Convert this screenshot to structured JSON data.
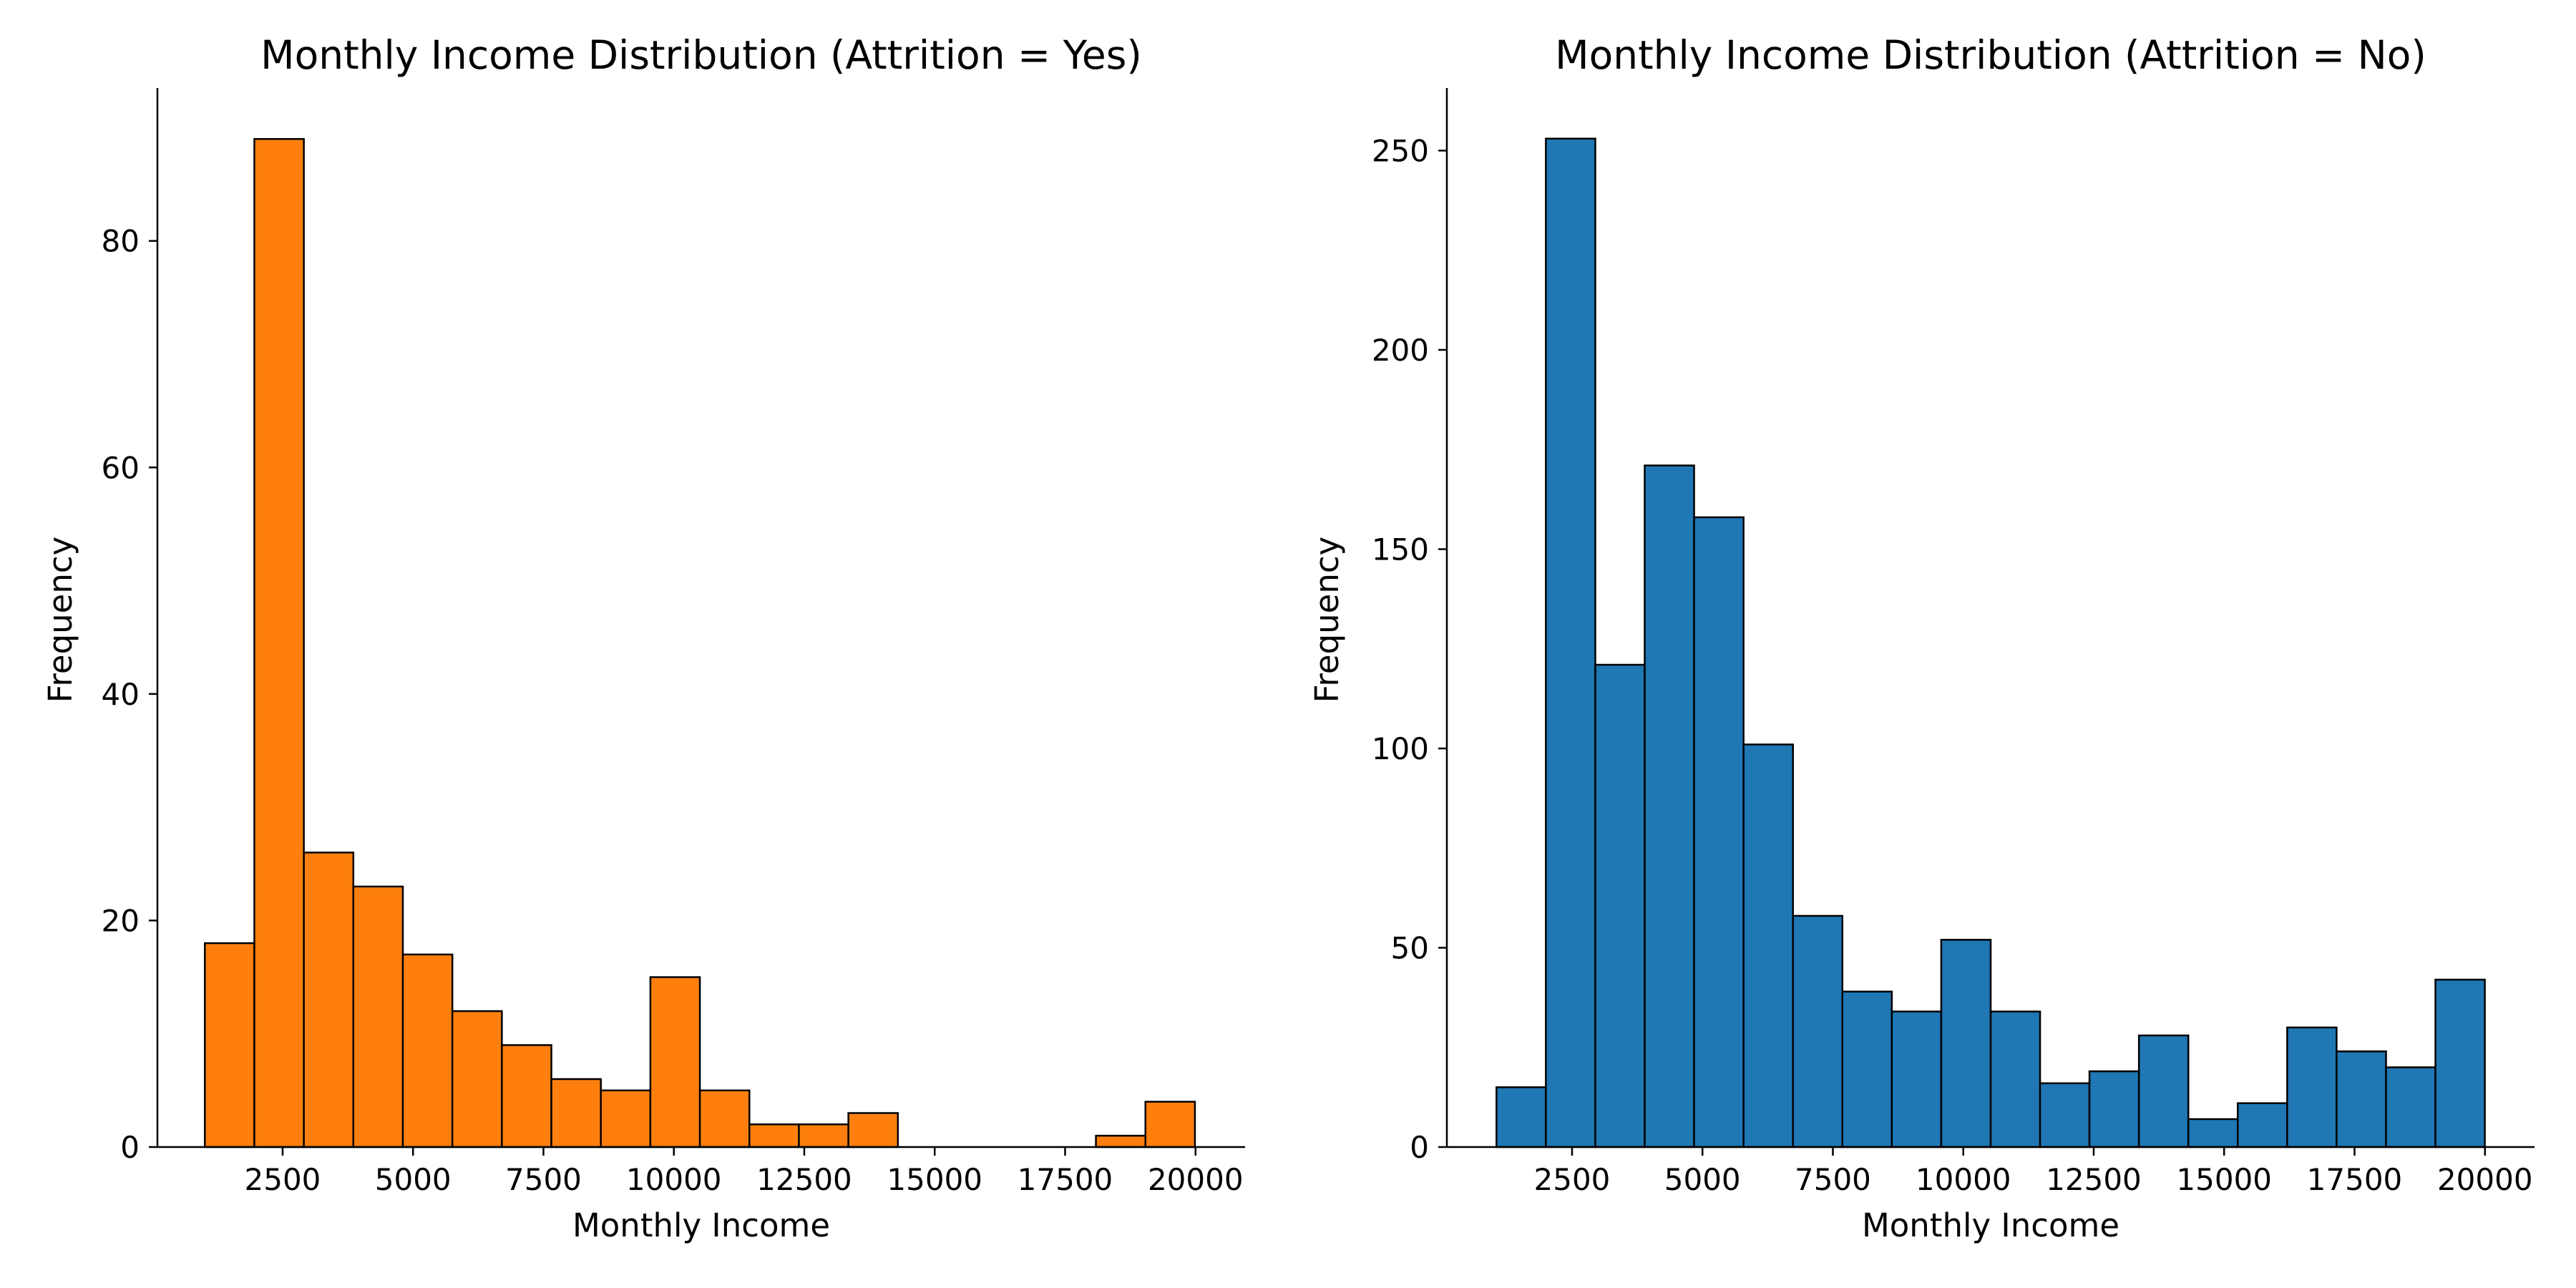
{
  "chart_data": [
    {
      "type": "bar",
      "title": "Monthly Income Distribution (Attrition = Yes)",
      "xlabel": "Monthly Income",
      "ylabel": "Frequency",
      "color": "#ff7f0e",
      "edge_color": "#000000",
      "xlim": [
        100,
        20950
      ],
      "ylim": [
        0,
        93.5
      ],
      "xticks": [
        2500,
        5000,
        7500,
        10000,
        12500,
        15000,
        17500,
        20000
      ],
      "xtick_labels": [
        "2500",
        "5000",
        "7500",
        "10000",
        "12500",
        "15000",
        "17500",
        "20000"
      ],
      "yticks": [
        0,
        20,
        40,
        60,
        80
      ],
      "ytick_labels": [
        "0",
        "20",
        "40",
        "60",
        "80"
      ],
      "bin_edges": [
        1009,
        1958,
        2907,
        3856,
        4805,
        5754,
        6703,
        7652,
        8601,
        9550,
        10499,
        11448,
        12397,
        13346,
        14295,
        15244,
        16193,
        17142,
        18091,
        19040,
        19989
      ],
      "values": [
        18,
        89,
        26,
        23,
        17,
        12,
        9,
        6,
        5,
        15,
        5,
        2,
        2,
        3,
        0,
        0,
        0,
        0,
        1,
        4
      ]
    },
    {
      "type": "bar",
      "title": "Monthly Income Distribution (Attrition = No)",
      "xlabel": "Monthly Income",
      "ylabel": "Frequency",
      "color": "#1f77b4",
      "edge_color": "#000000",
      "xlim": [
        100,
        20950
      ],
      "ylim": [
        0,
        265.7
      ],
      "xticks": [
        2500,
        5000,
        7500,
        10000,
        12500,
        15000,
        17500,
        20000
      ],
      "xtick_labels": [
        "2500",
        "5000",
        "7500",
        "10000",
        "12500",
        "15000",
        "17500",
        "20000"
      ],
      "yticks": [
        0,
        50,
        100,
        150,
        200,
        250
      ],
      "ytick_labels": [
        "0",
        "50",
        "100",
        "150",
        "200",
        "250"
      ],
      "bin_edges": [
        1051,
        1998,
        2946,
        3893,
        4840,
        5788,
        6735,
        7682,
        8630,
        9577,
        10525,
        11472,
        12419,
        13367,
        14314,
        15261,
        16209,
        17156,
        18104,
        19051,
        19998
      ],
      "values": [
        15,
        253,
        121,
        171,
        158,
        101,
        58,
        39,
        34,
        52,
        34,
        16,
        19,
        28,
        7,
        11,
        30,
        24,
        20,
        42
      ]
    }
  ]
}
